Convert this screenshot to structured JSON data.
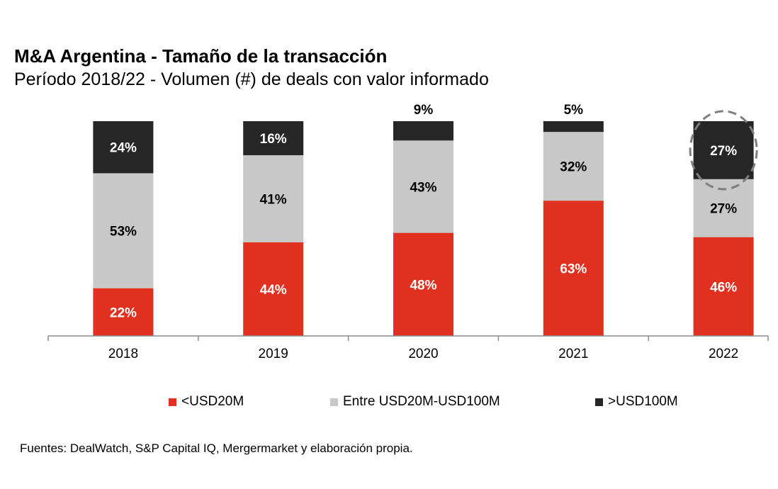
{
  "header": {
    "title": "M&A Argentina - Tamaño de la transacción",
    "subtitle": "Período 2018/22 - Volumen (#) de deals con valor informado"
  },
  "footer": {
    "source": "Fuentes: DealWatch, S&P Capital IQ, Mergermarket y elaboración propia."
  },
  "highlight": {
    "category": "2022",
    "series": ">USD100M",
    "style": "dashed-circle"
  },
  "chart_data": {
    "type": "bar",
    "stacked": true,
    "categories": [
      "2018",
      "2019",
      "2020",
      "2021",
      "2022"
    ],
    "series": [
      {
        "name": "<USD20M",
        "color": "#e03020",
        "values": [
          22,
          44,
          48,
          63,
          46
        ],
        "labels": [
          "22%",
          "44%",
          "48%",
          "63%",
          "46%"
        ]
      },
      {
        "name": "Entre USD20M-USD100M",
        "color": "#c8c8c8",
        "values": [
          53,
          41,
          43,
          32,
          27
        ],
        "labels": [
          "53%",
          "41%",
          "43%",
          "32%",
          "27%"
        ]
      },
      {
        "name": ">USD100M",
        "color": "#262626",
        "values": [
          24,
          16,
          9,
          5,
          27
        ],
        "labels": [
          "24%",
          "16%",
          "9%",
          "5%",
          "27%"
        ]
      }
    ],
    "ylim": [
      0,
      100
    ],
    "grid": false,
    "legend": "bottom"
  }
}
